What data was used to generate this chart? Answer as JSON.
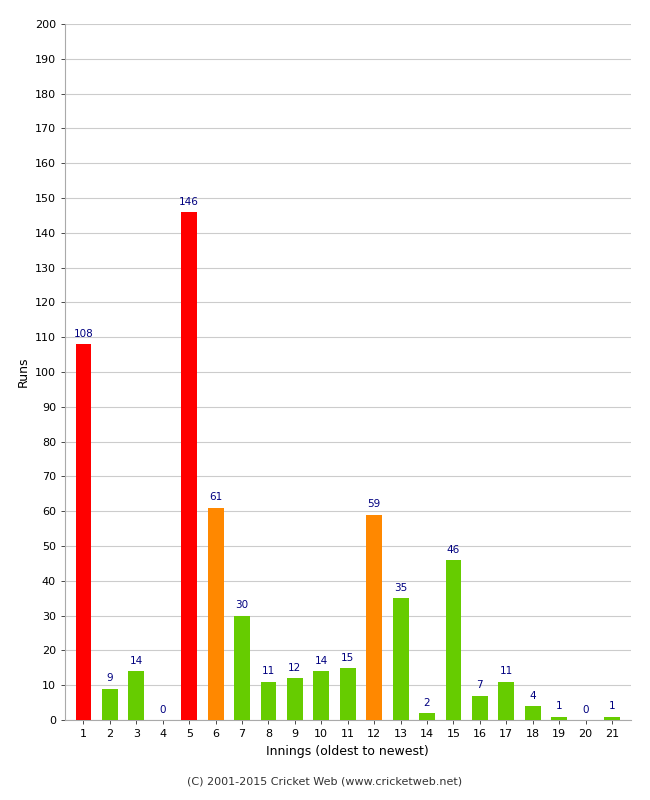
{
  "innings": [
    1,
    2,
    3,
    4,
    5,
    6,
    7,
    8,
    9,
    10,
    11,
    12,
    13,
    14,
    15,
    16,
    17,
    18,
    19,
    20,
    21
  ],
  "values": [
    108,
    9,
    14,
    0,
    146,
    61,
    30,
    11,
    12,
    14,
    15,
    59,
    35,
    2,
    46,
    7,
    11,
    4,
    1,
    0,
    1
  ],
  "colors": [
    "#ff0000",
    "#66cc00",
    "#66cc00",
    "#66cc00",
    "#ff0000",
    "#ff8800",
    "#66cc00",
    "#66cc00",
    "#66cc00",
    "#66cc00",
    "#66cc00",
    "#ff8800",
    "#66cc00",
    "#66cc00",
    "#66cc00",
    "#66cc00",
    "#66cc00",
    "#66cc00",
    "#66cc00",
    "#66cc00",
    "#66cc00"
  ],
  "xlabel": "Innings (oldest to newest)",
  "ylabel": "Runs",
  "ylim": [
    0,
    200
  ],
  "yticks": [
    0,
    10,
    20,
    30,
    40,
    50,
    60,
    70,
    80,
    90,
    100,
    110,
    120,
    130,
    140,
    150,
    160,
    170,
    180,
    190,
    200
  ],
  "label_color": "#000080",
  "footer": "(C) 2001-2015 Cricket Web (www.cricketweb.net)",
  "background_color": "#ffffff",
  "grid_color": "#cccccc",
  "bar_width": 0.6
}
